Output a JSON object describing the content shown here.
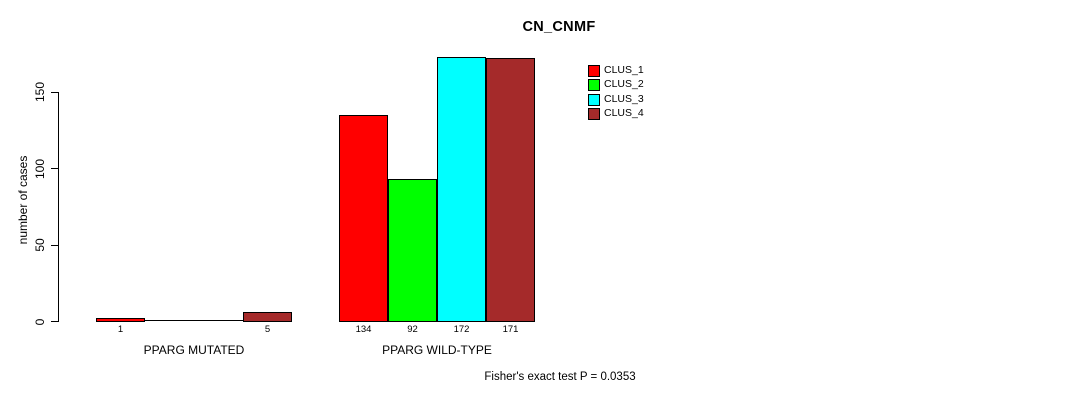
{
  "chart_data": {
    "type": "bar",
    "title": "CN_CNMF",
    "xlabel": "",
    "ylabel": "number of cases",
    "annotation": "Fisher's exact test P = 0.0353",
    "categories": [
      "PPARG MUTATED",
      "PPARG WILD-TYPE"
    ],
    "series": [
      {
        "name": "CLUS_1",
        "color": "#FF0000",
        "values": [
          1,
          134
        ]
      },
      {
        "name": "CLUS_2",
        "color": "#00FF00",
        "values": [
          0,
          92
        ]
      },
      {
        "name": "CLUS_3",
        "color": "#00FFFF",
        "values": [
          0,
          172
        ]
      },
      {
        "name": "CLUS_4",
        "color": "#A52A2A",
        "values": [
          5,
          171
        ]
      }
    ],
    "bar_labels": [
      [
        "1",
        "",
        "",
        "5"
      ],
      [
        "134",
        "92",
        "172",
        "171"
      ]
    ],
    "yticks": [
      0,
      50,
      100,
      150
    ],
    "ylim": [
      0,
      172
    ],
    "grid": false,
    "legend_position": "top-right",
    "legend": [
      "CLUS_1",
      "CLUS_2",
      "CLUS_3",
      "CLUS_4"
    ],
    "axis_color": "#000000",
    "bar_border_color": "#000000",
    "text_color": "#000000"
  }
}
